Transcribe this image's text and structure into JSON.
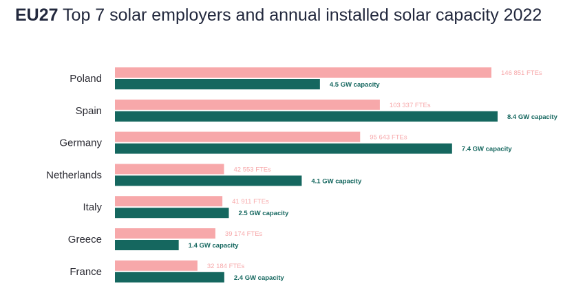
{
  "title": {
    "prefix": "EU27",
    "text": " Top 7 solar employers and annual installed solar capacity 2022"
  },
  "colors": {
    "employment": "#f7a8aa",
    "capacity": "#15675f",
    "country_text": "#2b2b33",
    "title_text": "#22283d"
  },
  "chart_data": {
    "type": "bar",
    "orientation": "horizontal",
    "categories": [
      "Poland",
      "Spain",
      "Germany",
      "Netherlands",
      "Italy",
      "Greece",
      "France"
    ],
    "series": [
      {
        "key": "employment",
        "values": [
          146851,
          103337,
          95643,
          42553,
          41911,
          39174,
          32184
        ],
        "labels": [
          "146 851 FTEs",
          "103 337 FTEs",
          "95 643 FTEs",
          "42 553 FTEs",
          "41 911 FTEs",
          "39 174 FTEs",
          "32 184 FTEs"
        ]
      },
      {
        "key": "capacity",
        "values": [
          4.5,
          8.4,
          7.4,
          4.1,
          2.5,
          1.4,
          2.4
        ],
        "labels": [
          "4.5 GW capacity",
          "8.4 GW capacity",
          "7.4 GW capacity",
          "4.1 GW capacity",
          "2.5 GW capacity",
          "1.4 GW capacity",
          "2.4 GW capacity"
        ]
      }
    ],
    "grid": false,
    "legend": "none"
  }
}
